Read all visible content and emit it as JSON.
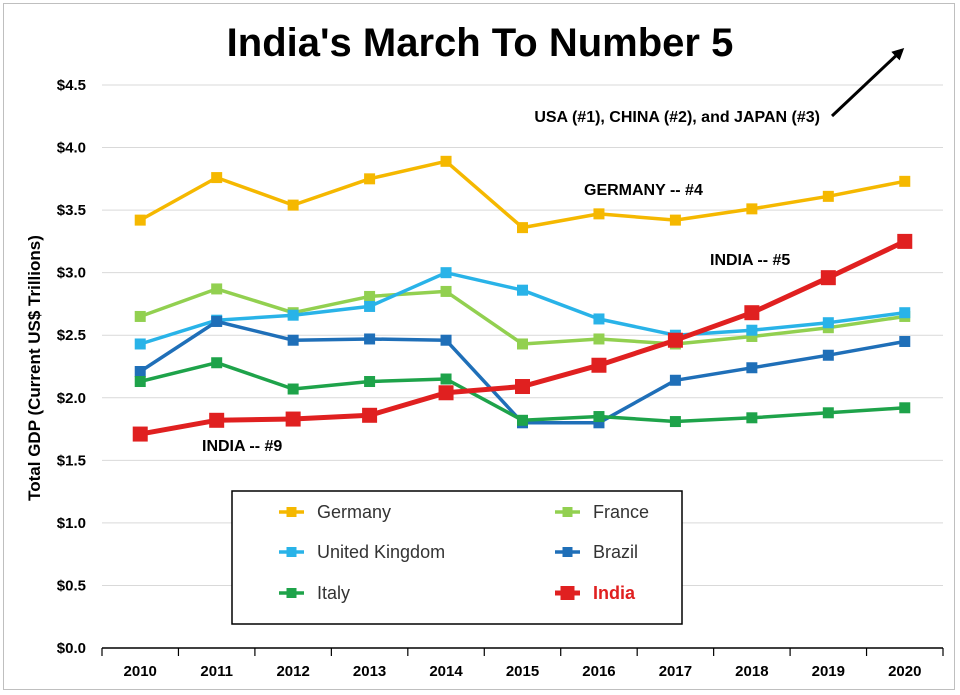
{
  "chart_data": {
    "type": "line",
    "title": "India's March To Number 5",
    "ylabel": "Total GDP (Current US$ Trillions)",
    "xlabel": "",
    "x": [
      "2010",
      "2011",
      "2012",
      "2013",
      "2014",
      "2015",
      "2016",
      "2017",
      "2018",
      "2019",
      "2020"
    ],
    "ylim": [
      0,
      4.5
    ],
    "ytick_labels": [
      "$0.0",
      "$0.5",
      "$1.0",
      "$1.5",
      "$2.0",
      "$2.5",
      "$3.0",
      "$3.5",
      "$4.0",
      "$4.5"
    ],
    "grid": true,
    "legend_placement": "bottom-center",
    "series": [
      {
        "name": "Germany",
        "color": "#f5b800",
        "values": [
          3.42,
          3.76,
          3.54,
          3.75,
          3.89,
          3.36,
          3.47,
          3.42,
          3.51,
          3.61,
          3.73
        ]
      },
      {
        "name": "France",
        "color": "#92d050",
        "values": [
          2.65,
          2.87,
          2.68,
          2.81,
          2.85,
          2.43,
          2.47,
          2.43,
          2.49,
          2.56,
          2.65
        ]
      },
      {
        "name": "United Kingdom",
        "color": "#29b3e8",
        "values": [
          2.43,
          2.62,
          2.66,
          2.73,
          3.0,
          2.86,
          2.63,
          2.5,
          2.54,
          2.6,
          2.68
        ]
      },
      {
        "name": "Brazil",
        "color": "#1f6fb8",
        "values": [
          2.21,
          2.61,
          2.46,
          2.47,
          2.46,
          1.8,
          1.8,
          2.14,
          2.24,
          2.34,
          2.45
        ]
      },
      {
        "name": "Italy",
        "color": "#1ea34a",
        "values": [
          2.13,
          2.28,
          2.07,
          2.13,
          2.15,
          1.82,
          1.85,
          1.81,
          1.84,
          1.88,
          1.92
        ]
      },
      {
        "name": "India",
        "color": "#e02020",
        "values": [
          1.71,
          1.82,
          1.83,
          1.86,
          2.04,
          2.09,
          2.26,
          2.46,
          2.68,
          2.96,
          3.25
        ]
      }
    ],
    "annotations": [
      {
        "text": "USA (#1), CHINA (#2), and JAPAN (#3)"
      },
      {
        "text": "GERMANY -- #4"
      },
      {
        "text": "INDIA -- #5"
      },
      {
        "text": "INDIA -- #9"
      }
    ]
  }
}
